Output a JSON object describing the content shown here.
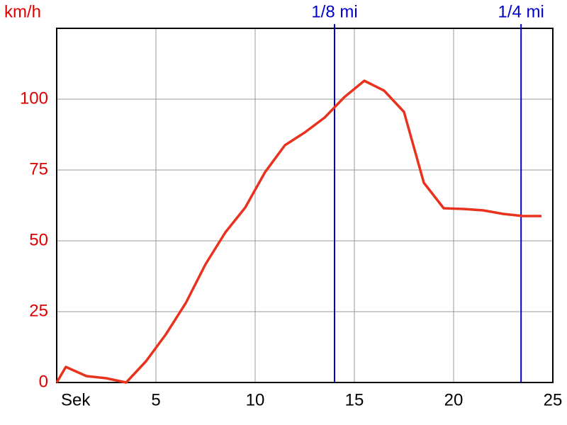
{
  "chart_data": {
    "type": "line",
    "y_label": "km/h",
    "x_label": "Sek",
    "x": [
      0,
      0.46,
      1.5,
      2.5,
      3.5,
      4.5,
      5.5,
      6.5,
      7.5,
      8.5,
      9.5,
      10.5,
      11.5,
      12.5,
      13.5,
      14.5,
      15.5,
      16.5,
      17.5,
      18.5,
      19.5,
      20.5,
      21.5,
      22.5,
      23.5,
      24.43
    ],
    "series": [
      {
        "color": "#e8321e",
        "values": [
          0,
          5.5,
          2.25,
          1.5,
          0,
          7.5,
          17,
          28,
          41.75,
          53,
          61.75,
          74.25,
          83.75,
          88.25,
          93.5,
          100.75,
          106.5,
          103,
          95.5,
          70.5,
          61.5,
          61.25,
          60.75,
          59.5,
          58.75,
          58.75
        ]
      }
    ],
    "xlim": [
      0,
      25
    ],
    "ylim": [
      0,
      125
    ],
    "xticks": [
      5,
      10,
      15,
      20,
      25
    ],
    "yticks": [
      0,
      25,
      50,
      75,
      100
    ],
    "grid": true,
    "markers": [
      {
        "label": "1/8 mi",
        "x": 14,
        "color": "#0000cc"
      },
      {
        "label": "1/4 mi",
        "x": 23.4,
        "color": "#0000cc"
      }
    ]
  }
}
